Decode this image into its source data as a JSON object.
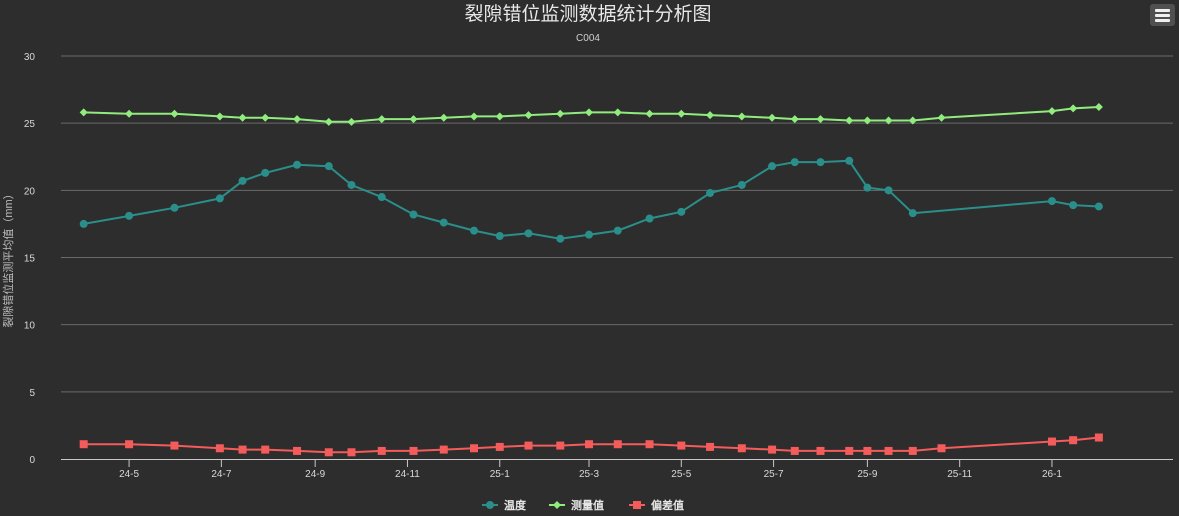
{
  "menu": {
    "icon": "hamburger-menu-icon"
  },
  "chart_data": {
    "type": "line",
    "title": "裂隙错位监测数据统计分析图",
    "subtitle": "C004",
    "ylabel": "裂隙错位监测平均值（mm）",
    "xlabel": "",
    "ylim": [
      0,
      30
    ],
    "yticks": [
      "0",
      "5",
      "10",
      "15",
      "20",
      "25",
      "30"
    ],
    "xlim": [
      "2024-03-17",
      "2026-03-22"
    ],
    "xticks": [
      {
        "label": "24-5",
        "date": "2024-05-01"
      },
      {
        "label": "24-7",
        "date": "2024-07-01"
      },
      {
        "label": "24-9",
        "date": "2024-09-01"
      },
      {
        "label": "24-11",
        "date": "2024-11-01"
      },
      {
        "label": "25-1",
        "date": "2025-01-01"
      },
      {
        "label": "25-3",
        "date": "2025-03-01"
      },
      {
        "label": "25-5",
        "date": "2025-05-01"
      },
      {
        "label": "25-7",
        "date": "2025-07-01"
      },
      {
        "label": "25-9",
        "date": "2025-09-01"
      },
      {
        "label": "25-11",
        "date": "2025-11-01"
      },
      {
        "label": "26-1",
        "date": "2026-01-01"
      }
    ],
    "grid": true,
    "legend_position": "bottom-center",
    "x": [
      "2024-04-01",
      "2024-05-01",
      "2024-05-31",
      "2024-06-30",
      "2024-07-15",
      "2024-07-30",
      "2024-08-20",
      "2024-09-10",
      "2024-09-25",
      "2024-10-15",
      "2024-11-05",
      "2024-11-25",
      "2024-12-15",
      "2025-01-01",
      "2025-01-20",
      "2025-02-10",
      "2025-03-01",
      "2025-03-20",
      "2025-04-10",
      "2025-05-01",
      "2025-05-20",
      "2025-06-10",
      "2025-06-30",
      "2025-07-15",
      "2025-08-01",
      "2025-08-20",
      "2025-09-01",
      "2025-09-15",
      "2025-10-01",
      "2025-10-20",
      "2026-01-01",
      "2026-01-15",
      "2026-02-01"
    ],
    "series": [
      {
        "name": "温度",
        "color": "#2a8f8a",
        "marker": "circle",
        "values": [
          17.5,
          18.1,
          18.7,
          19.4,
          20.7,
          21.3,
          21.9,
          21.8,
          20.4,
          19.5,
          18.2,
          17.6,
          17.0,
          16.6,
          16.8,
          16.4,
          16.7,
          17.0,
          17.9,
          18.4,
          19.8,
          20.4,
          21.8,
          22.1,
          22.1,
          22.2,
          20.2,
          20.0,
          18.3,
          null,
          19.2,
          18.9,
          18.8
        ]
      },
      {
        "name": "测量值",
        "color": "#90ed7d",
        "marker": "diamond",
        "values": [
          25.8,
          25.7,
          25.7,
          25.5,
          25.4,
          25.4,
          25.3,
          25.1,
          25.1,
          25.3,
          25.3,
          25.4,
          25.5,
          25.5,
          25.6,
          25.7,
          25.8,
          25.8,
          25.7,
          25.7,
          25.6,
          25.5,
          25.4,
          25.3,
          25.3,
          25.2,
          25.2,
          25.2,
          25.2,
          25.4,
          25.9,
          26.1,
          26.2
        ]
      },
      {
        "name": "偏差值",
        "color": "#f45b5b",
        "marker": "square",
        "values": [
          1.1,
          1.1,
          1.0,
          0.8,
          0.7,
          0.7,
          0.6,
          0.5,
          0.5,
          0.6,
          0.6,
          0.7,
          0.8,
          0.9,
          1.0,
          1.0,
          1.1,
          1.1,
          1.1,
          1.0,
          0.9,
          0.8,
          0.7,
          0.6,
          0.6,
          0.6,
          0.6,
          0.6,
          0.6,
          0.8,
          1.3,
          1.4,
          1.6
        ]
      }
    ]
  }
}
